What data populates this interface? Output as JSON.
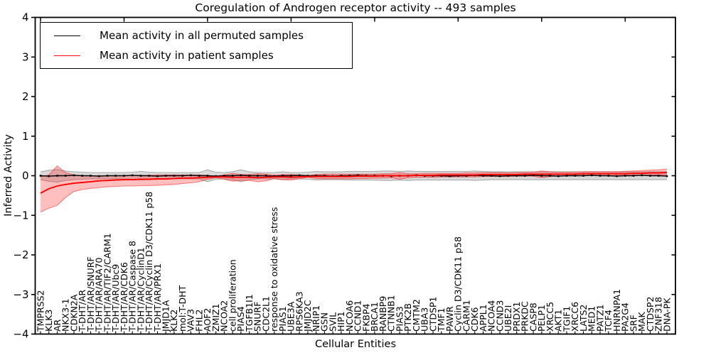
{
  "figure": {
    "title": "Coregulation of Androgen receptor activity -- 493 samples",
    "xlabel": "Cellular Entities",
    "ylabel": "Inferred Activity"
  },
  "legend": {
    "position": "upper left",
    "items": [
      {
        "label": "Mean activity in all permuted samples",
        "color": "#000000"
      },
      {
        "label": "Mean activity in patient samples",
        "color": "#ff0000"
      }
    ]
  },
  "chart_data": {
    "type": "line",
    "title": "Coregulation of Androgen receptor activity -- 493 samples",
    "xlabel": "Cellular Entities",
    "ylabel": "Inferred Activity",
    "ylim": [
      -4,
      4
    ],
    "yticks": [
      -4,
      -3,
      -2,
      -1,
      0,
      1,
      2,
      3,
      4
    ],
    "yticklabels": [
      "−4",
      "−3",
      "−2",
      "−1",
      "0",
      "1",
      "2",
      "3",
      "4"
    ],
    "grid": false,
    "legend_position": "upper left",
    "sample_count": 493,
    "categories": [
      "TMPRSS2",
      "KLK3",
      "AR",
      "NKX3-1",
      "CDKN2A",
      "T-DHT/AR",
      "T-DHT/AR/SNURF",
      "T-DHT/AR/ARA70",
      "T-DHT/AR/TIF2/CARM1",
      "T-DHT/AR/Ubc9",
      "T-DHT/AR/CDK6",
      "T-DHT/AR/Caspase 8",
      "T-DHT/AR/CyclinD1",
      "T-DHT/AR/Cyclin D3/CDK11 p58",
      "T-DHT/AR/PRX1",
      "JMJD1A",
      "KLK2",
      "mol:T-DHT",
      "VAV3",
      "FHL2",
      "AOF2",
      "ZMIZ1",
      "NCOA2",
      "cell proliferation",
      "PIAS4",
      "TGFB1I1",
      "SNURF",
      "CDC2L1",
      "response to oxidative stress",
      "PIAS1",
      "UBE3A",
      "RPS6KA3",
      "JMJD2C",
      "NRIP1",
      "GSN",
      "SVIL",
      "HIP1",
      "NCOA6",
      "CCND1",
      "FKBP4",
      "BRCA1",
      "RANBP9",
      "CTNNB1",
      "PIAS3",
      "PTK2B",
      "CMTM2",
      "UBA3",
      "CTDSP1",
      "TMF1",
      "PAWR",
      "Cyclin D3/CDK11 p58",
      "CARM1",
      "CDK6",
      "APPL1",
      "NCOA4",
      "CCND3",
      "UBE2I",
      "PRDX1",
      "PRKDC",
      "CASP8",
      "PELP1",
      "XRCC5",
      "AKT1",
      "TGIF1",
      "XRCC6",
      "LATS2",
      "MED1",
      "PATZ1",
      "TCF4",
      "HNRNPA1",
      "PA2G4",
      "SRF",
      "MAK",
      "CTDSP2",
      "ZNF318",
      "DNA-PK"
    ],
    "series": [
      {
        "name": "Mean activity in all permuted samples",
        "color": "#000000",
        "band_fill": "rgba(128,128,128,0.30)",
        "band_edge": "rgba(110,110,110,0.50)",
        "markers": true,
        "values": [
          0,
          -0.01,
          0,
          0,
          0.01,
          0,
          0,
          -0.01,
          0,
          0,
          0,
          0.01,
          0,
          0,
          -0.01,
          0,
          0,
          0,
          0.01,
          0,
          0,
          -0.01,
          0,
          0,
          0.01,
          0,
          0,
          0,
          -0.01,
          0,
          0,
          0.01,
          0,
          0,
          0,
          -0.01,
          0,
          0,
          0.01,
          0,
          0,
          0,
          -0.01,
          0,
          0,
          0.01,
          0,
          0,
          0,
          -0.01,
          0,
          0,
          0.01,
          0,
          0,
          -0.01,
          0,
          0,
          0,
          0.01,
          0,
          0,
          -0.01,
          0,
          0,
          0,
          0.01,
          0,
          0,
          -0.01,
          0,
          0,
          0.01,
          0,
          0,
          -0.01
        ],
        "band_upper": [
          0.1,
          0.14,
          0.16,
          0.12,
          0.1,
          0.09,
          0.08,
          0.08,
          0.08,
          0.08,
          0.08,
          0.09,
          0.11,
          0.09,
          0.08,
          0.08,
          0.08,
          0.08,
          0.08,
          0.08,
          0.15,
          0.09,
          0.08,
          0.1,
          0.15,
          0.1,
          0.08,
          0.08,
          0.08,
          0.1,
          0.08,
          0.08,
          0.09,
          0.11,
          0.1,
          0.1,
          0.1,
          0.11,
          0.11,
          0.11,
          0.11,
          0.12,
          0.12,
          0.11,
          0.12,
          0.11,
          0.11,
          0.11,
          0.11,
          0.11,
          0.11,
          0.11,
          0.12,
          0.11,
          0.1,
          0.1,
          0.1,
          0.1,
          0.1,
          0.1,
          0.1,
          0.1,
          0.1,
          0.1,
          0.1,
          0.1,
          0.1,
          0.1,
          0.1,
          0.1,
          0.1,
          0.1,
          0.1,
          0.1,
          0.1,
          0.1
        ],
        "band_lower": [
          -0.1,
          -0.14,
          -0.16,
          -0.12,
          -0.1,
          -0.09,
          -0.08,
          -0.08,
          -0.08,
          -0.08,
          -0.08,
          -0.09,
          -0.11,
          -0.09,
          -0.08,
          -0.08,
          -0.08,
          -0.08,
          -0.08,
          -0.08,
          -0.15,
          -0.09,
          -0.08,
          -0.1,
          -0.15,
          -0.1,
          -0.08,
          -0.08,
          -0.08,
          -0.1,
          -0.08,
          -0.08,
          -0.09,
          -0.11,
          -0.1,
          -0.1,
          -0.1,
          -0.11,
          -0.11,
          -0.11,
          -0.11,
          -0.12,
          -0.12,
          -0.11,
          -0.12,
          -0.11,
          -0.11,
          -0.11,
          -0.11,
          -0.11,
          -0.11,
          -0.11,
          -0.12,
          -0.11,
          -0.1,
          -0.1,
          -0.1,
          -0.1,
          -0.1,
          -0.1,
          -0.1,
          -0.1,
          -0.1,
          -0.1,
          -0.1,
          -0.1,
          -0.1,
          -0.1,
          -0.1,
          -0.1,
          -0.1,
          -0.1,
          -0.1,
          -0.1,
          -0.1,
          -0.1
        ]
      },
      {
        "name": "Mean activity in patient samples",
        "color": "#ff0000",
        "band_fill": "rgba(255,0,0,0.25)",
        "band_edge": "rgba(255,0,0,0.45)",
        "markers": false,
        "values": [
          -0.44,
          -0.33,
          -0.26,
          -0.22,
          -0.19,
          -0.17,
          -0.15,
          -0.13,
          -0.12,
          -0.11,
          -0.1,
          -0.1,
          -0.09,
          -0.09,
          -0.08,
          -0.08,
          -0.07,
          -0.06,
          -0.06,
          -0.05,
          -0.04,
          -0.03,
          -0.03,
          -0.04,
          -0.04,
          -0.04,
          -0.05,
          -0.04,
          -0.03,
          -0.03,
          -0.04,
          -0.03,
          -0.02,
          -0.02,
          -0.02,
          -0.02,
          -0.02,
          -0.02,
          -0.01,
          -0.01,
          -0.01,
          0,
          0,
          0,
          0,
          0.01,
          0.01,
          0.01,
          0.02,
          0.02,
          0.02,
          0.02,
          0.02,
          0.03,
          0.03,
          0.03,
          0.03,
          0.03,
          0.04,
          0.04,
          0.04,
          0.04,
          0.04,
          0.04,
          0.04,
          0.05,
          0.05,
          0.05,
          0.05,
          0.05,
          0.05,
          0.06,
          0.06,
          0.07,
          0.07,
          0.08
        ],
        "band_upper": [
          -0.03,
          0.02,
          0.25,
          0.08,
          0.02,
          0.0,
          0.0,
          0.0,
          0.0,
          0.0,
          0.0,
          0.01,
          0.01,
          0.01,
          0.02,
          0.02,
          0.02,
          0.02,
          0.02,
          0.02,
          0.01,
          -0.01,
          0.02,
          0.06,
          0.03,
          0.03,
          0.05,
          0.04,
          0.01,
          0.03,
          0.03,
          0.02,
          0.0,
          0.03,
          0.04,
          0.04,
          0.04,
          0.04,
          0.04,
          0.04,
          0.04,
          0.05,
          0.05,
          0.08,
          0.05,
          0.05,
          0.06,
          0.06,
          0.06,
          0.06,
          0.06,
          0.07,
          0.07,
          0.08,
          0.08,
          0.08,
          0.07,
          0.08,
          0.08,
          0.09,
          0.12,
          0.1,
          0.09,
          0.09,
          0.09,
          0.1,
          0.1,
          0.1,
          0.1,
          0.1,
          0.11,
          0.12,
          0.13,
          0.14,
          0.15,
          0.17
        ],
        "band_lower": [
          -0.92,
          -0.82,
          -0.75,
          -0.55,
          -0.4,
          -0.35,
          -0.32,
          -0.3,
          -0.28,
          -0.27,
          -0.26,
          -0.26,
          -0.25,
          -0.25,
          -0.24,
          -0.23,
          -0.22,
          -0.2,
          -0.18,
          -0.15,
          -0.09,
          -0.05,
          -0.09,
          -0.14,
          -0.12,
          -0.12,
          -0.15,
          -0.13,
          -0.07,
          -0.1,
          -0.11,
          -0.08,
          -0.04,
          -0.07,
          -0.08,
          -0.08,
          -0.08,
          -0.08,
          -0.07,
          -0.07,
          -0.06,
          -0.06,
          -0.05,
          -0.09,
          -0.05,
          -0.04,
          -0.04,
          -0.04,
          -0.03,
          -0.03,
          -0.03,
          -0.03,
          -0.03,
          -0.02,
          -0.02,
          -0.02,
          -0.02,
          -0.01,
          -0.01,
          -0.01,
          -0.05,
          -0.02,
          -0.01,
          0.0,
          0.0,
          0.0,
          0.0,
          0.0,
          0.0,
          0.01,
          0.01,
          0.01,
          0.01,
          0.01,
          0.02,
          0.02
        ]
      }
    ]
  }
}
